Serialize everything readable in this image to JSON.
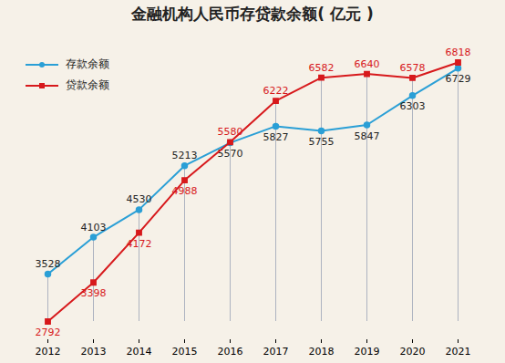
{
  "chart_data": {
    "type": "line",
    "title": "金融机构人民币存贷款余额( 亿元 )",
    "categories": [
      "2012",
      "2013",
      "2014",
      "2015",
      "2016",
      "2017",
      "2018",
      "2019",
      "2020",
      "2021"
    ],
    "series": [
      {
        "name": "存款余额",
        "color": "#2a9fd6",
        "marker": "circle",
        "values": [
          3528,
          4103,
          4530,
          5213,
          5570,
          5827,
          5755,
          5847,
          6303,
          6729
        ]
      },
      {
        "name": "贷款余额",
        "color": "#d7191c",
        "marker": "square",
        "values": [
          2792,
          3398,
          4172,
          4988,
          5580,
          6222,
          6582,
          6640,
          6578,
          6818
        ]
      }
    ],
    "data_labels": true,
    "legend": "top-left",
    "tick_labels": "x",
    "grid": false
  }
}
